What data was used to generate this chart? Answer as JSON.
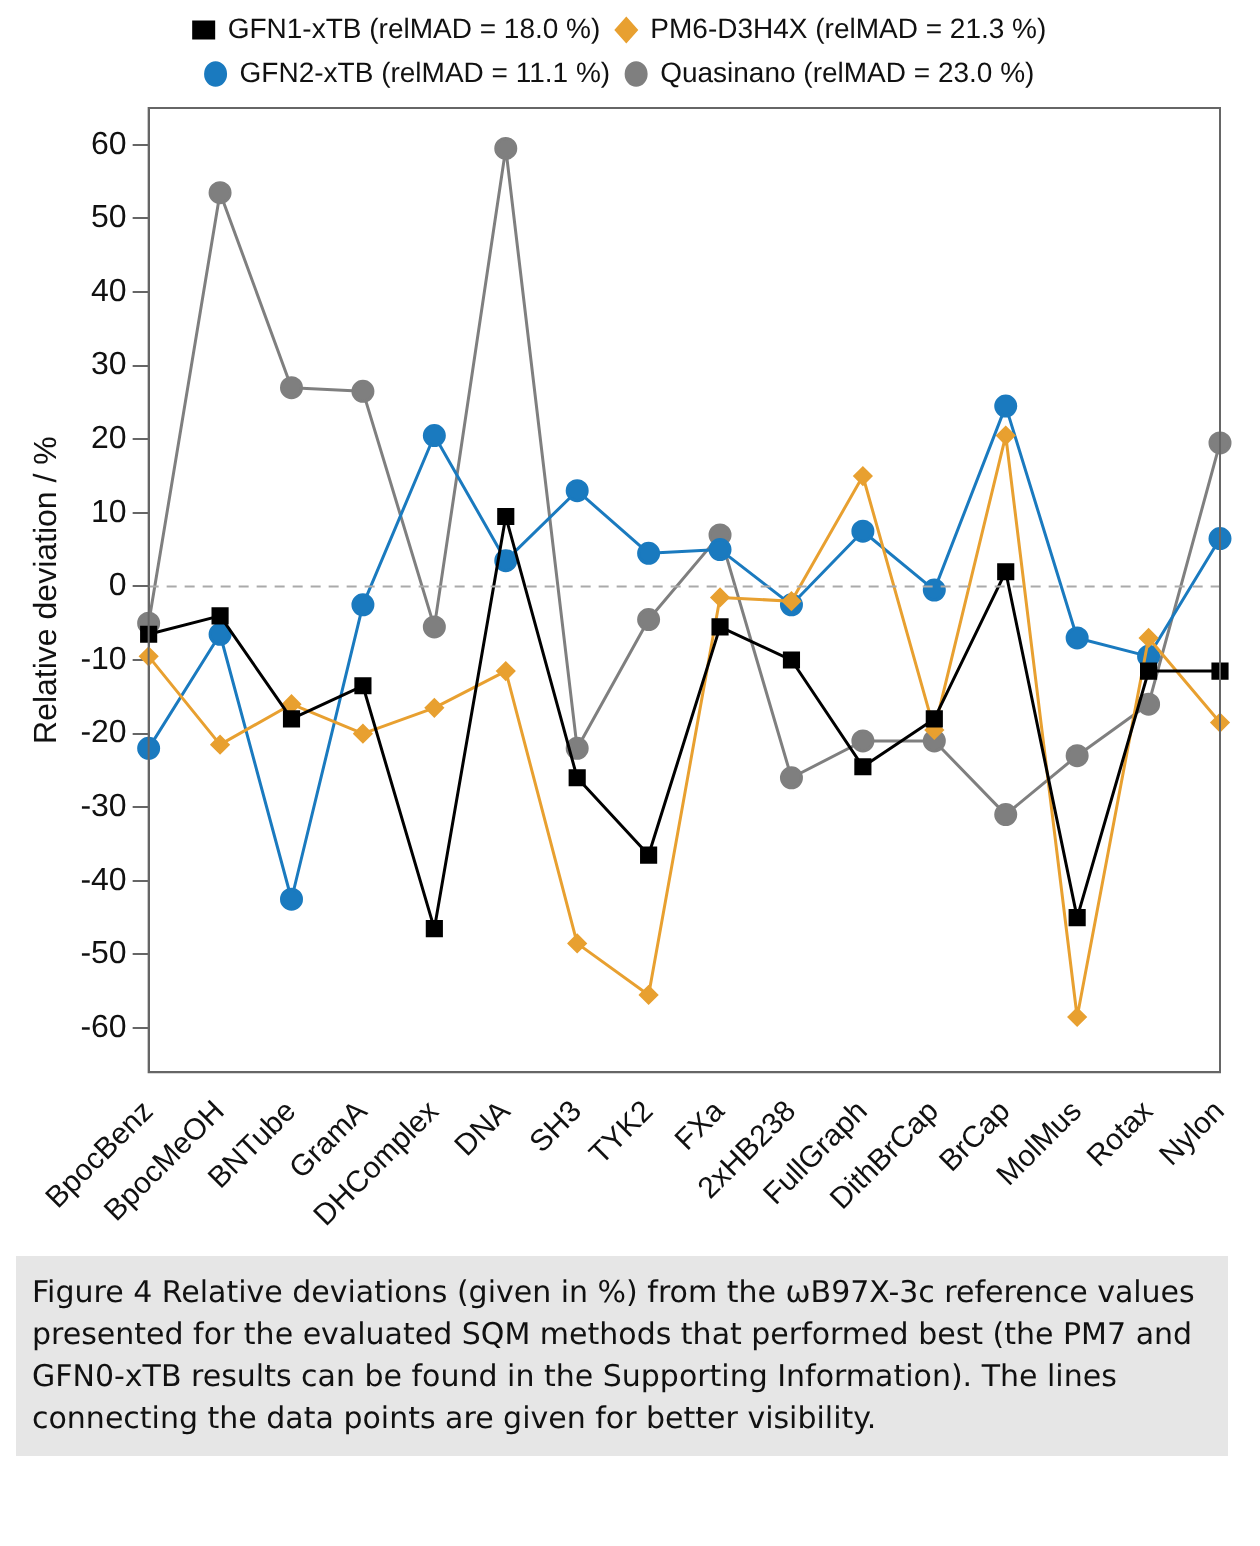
{
  "chart_data": {
    "type": "line",
    "ylabel": "Relative deviation / %",
    "categories": [
      "BpocBenz",
      "BpocMeOH",
      "BNTube",
      "GramA",
      "DHComplex",
      "DNA",
      "SH3",
      "TYK2",
      "FXa",
      "2xHB238",
      "FullGraph",
      "DithBrCap",
      "BrCap",
      "MolMus",
      "Rotax",
      "Nylon"
    ],
    "series": [
      {
        "name": "GFN1-xTB (relMAD = 18.0 %)",
        "color": "#000000",
        "marker": "square",
        "values": [
          -6.5,
          -4,
          -18,
          -13.5,
          -46.5,
          9.5,
          -26,
          -36.5,
          -5.5,
          -10,
          -24.5,
          -18,
          2,
          -45,
          -11.5,
          -11.5
        ]
      },
      {
        "name": "PM6-D3H4X (relMAD = 21.3 %)",
        "color": "#e8a030",
        "marker": "diamond",
        "values": [
          -9.5,
          -21.5,
          -16,
          -20,
          -16.5,
          -11.5,
          -48.5,
          -55.5,
          -1.5,
          -2,
          15,
          -19.5,
          20.5,
          -58.5,
          -7,
          -18.5
        ]
      },
      {
        "name": "GFN2-xTB (relMAD = 11.1 %)",
        "color": "#1a7abf",
        "marker": "circle",
        "values": [
          -22,
          -6.5,
          -42.5,
          -2.5,
          20.5,
          3.5,
          13,
          4.5,
          5,
          -2.5,
          7.5,
          -0.5,
          24.5,
          -7,
          -9.5,
          6.5
        ]
      },
      {
        "name": "Quasinano (relMAD = 23.0 %)",
        "color": "#7f7f7f",
        "marker": "circle",
        "values": [
          -5,
          53.5,
          27,
          26.5,
          -5.5,
          59.5,
          -22,
          -4.5,
          7,
          -26,
          -21,
          -21,
          -31,
          -23,
          -16,
          19.5
        ]
      }
    ],
    "ylim": [
      -66,
      65
    ],
    "yticks": [
      -60,
      -50,
      -40,
      -30,
      -20,
      -10,
      0,
      10,
      20,
      30,
      40,
      50,
      60
    ],
    "grid": false,
    "legend": "top",
    "line_style": "solid",
    "ref_lines": [
      {
        "axis": "y",
        "value": 0,
        "color": "#aaaaaa",
        "line_style": "dashed"
      }
    ],
    "annotations": [
      "Figure 4   Relative deviations (given in %) from the ωB97X-3c reference values presented for the evaluated SQM methods that performed best (the PM7 and GFN0-xTB results can be found in the Supporting Information). The lines connecting the data points are given for better visibility."
    ]
  }
}
